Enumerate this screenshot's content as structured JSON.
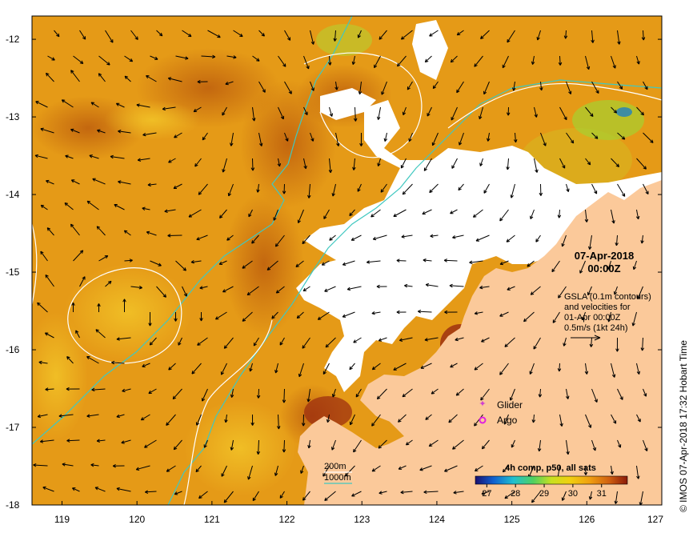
{
  "map": {
    "lon_ticks": [
      "119",
      "120",
      "121",
      "122",
      "123",
      "124",
      "125",
      "126",
      "127"
    ],
    "lat_ticks": [
      "-12",
      "-13",
      "-14",
      "-15",
      "-16",
      "-17",
      "-18"
    ],
    "lon_range": [
      118.6,
      127.0
    ],
    "lat_range": [
      -11.7,
      -18.0
    ]
  },
  "timestamp": {
    "date": "07-Apr-2018",
    "time": "00:00Z"
  },
  "gsla_note": {
    "line1": "GSLA (0.1m contours)",
    "line2": "and velocities for",
    "line3": "01-Apr 00:00Z",
    "line4": "0.5m/s (1kt 24h)"
  },
  "legend": {
    "glider": "Glider",
    "argo": "Argo",
    "glider_color": "#d040d0",
    "argo_color": "#e020e0"
  },
  "isobaths": {
    "label_200": "200m",
    "label_1000": "1000m",
    "color_200": "#ffffff",
    "color_1000": "#40c8c0"
  },
  "colorbar": {
    "title": "4h comp, p50, all sats",
    "ticks": [
      "27",
      "28",
      "29",
      "30",
      "31"
    ],
    "range": [
      26.6,
      31.9
    ]
  },
  "credit": "© IMOS 07-Apr-2018 17:32 Hobart Time",
  "colors": {
    "land": "#fbc99a",
    "cloud": "#ffffff",
    "sst_base": "#e59a17"
  }
}
